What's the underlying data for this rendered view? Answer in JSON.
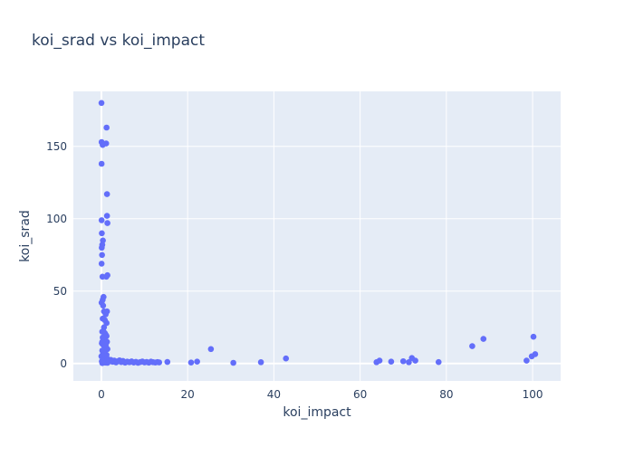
{
  "chart_data": {
    "type": "scatter",
    "title": "koi_srad vs koi_impact",
    "xlabel": "koi_impact",
    "ylabel": "koi_srad",
    "xlim": [
      -6.5,
      106.5
    ],
    "ylim": [
      -12,
      188
    ],
    "xticks": [
      0,
      20,
      40,
      60,
      80,
      100
    ],
    "yticks": [
      0,
      50,
      100,
      150
    ],
    "grid": true,
    "colors": {
      "plot_bg": "#e5ecf6",
      "marker": "#636efa",
      "grid": "#ffffff",
      "text": "#2a3f5f"
    },
    "series": [
      {
        "points": [
          [
            0.02,
            180
          ],
          [
            0.05,
            153
          ],
          [
            0.3,
            151
          ],
          [
            1.1,
            152
          ],
          [
            1.2,
            163
          ],
          [
            0.05,
            138
          ],
          [
            1.3,
            117
          ],
          [
            0.05,
            99
          ],
          [
            1.3,
            102
          ],
          [
            1.4,
            97
          ],
          [
            0.1,
            90
          ],
          [
            0.35,
            85
          ],
          [
            0.08,
            80
          ],
          [
            0.2,
            82
          ],
          [
            0.15,
            75
          ],
          [
            0.05,
            69
          ],
          [
            0.25,
            60
          ],
          [
            1.15,
            60
          ],
          [
            1.4,
            61
          ],
          [
            0.5,
            46
          ],
          [
            0.3,
            44
          ],
          [
            0.05,
            42
          ],
          [
            0.4,
            40
          ],
          [
            1.3,
            36
          ],
          [
            0.6,
            36
          ],
          [
            1.0,
            34
          ],
          [
            0.3,
            31
          ],
          [
            0.8,
            30
          ],
          [
            1.2,
            28
          ],
          [
            0.6,
            25
          ],
          [
            0.2,
            22
          ],
          [
            0.5,
            22
          ],
          [
            0.8,
            21
          ],
          [
            1.0,
            20
          ],
          [
            1.2,
            19
          ],
          [
            0.3,
            18
          ],
          [
            0.6,
            17
          ],
          [
            0.9,
            16
          ],
          [
            1.3,
            15
          ],
          [
            0.1,
            14
          ],
          [
            0.4,
            13
          ],
          [
            0.7,
            12
          ],
          [
            1.1,
            11
          ],
          [
            1.4,
            10
          ],
          [
            0.2,
            9
          ],
          [
            0.5,
            8
          ],
          [
            0.8,
            7
          ],
          [
            1.2,
            6
          ],
          [
            0.0,
            5
          ],
          [
            0.3,
            4
          ],
          [
            0.6,
            3
          ],
          [
            0.9,
            2.5
          ],
          [
            1.3,
            2
          ],
          [
            0.1,
            1.5
          ],
          [
            0.4,
            1
          ],
          [
            0.7,
            0.8
          ],
          [
            1.0,
            0.6
          ],
          [
            1.4,
            0.5
          ],
          [
            0.2,
            0.3
          ],
          [
            0.5,
            2
          ],
          [
            0.9,
            3.5
          ],
          [
            1.1,
            5
          ],
          [
            0.4,
            7
          ],
          [
            0.7,
            9
          ],
          [
            1.0,
            13
          ],
          [
            0.2,
            15
          ],
          [
            1.5,
            3
          ],
          [
            1.8,
            1.5
          ],
          [
            2.2,
            2.5
          ],
          [
            2.6,
            1.2
          ],
          [
            3.0,
            2
          ],
          [
            3.4,
            0.8
          ],
          [
            3.8,
            1.6
          ],
          [
            4.2,
            2.2
          ],
          [
            4.6,
            1
          ],
          [
            5.0,
            1.8
          ],
          [
            5.5,
            0.6
          ],
          [
            6.0,
            1.3
          ],
          [
            6.5,
            0.9
          ],
          [
            7.0,
            1.5
          ],
          [
            7.5,
            0.7
          ],
          [
            8.0,
            1.2
          ],
          [
            8.5,
            0.5
          ],
          [
            9.0,
            1.0
          ],
          [
            9.5,
            1.4
          ],
          [
            10.0,
            0.8
          ],
          [
            10.5,
            1.1
          ],
          [
            11.0,
            0.6
          ],
          [
            11.5,
            1.3
          ],
          [
            12.0,
            0.9
          ],
          [
            12.5,
            0.7
          ],
          [
            13.0,
            1.0
          ],
          [
            13.4,
            0.8
          ],
          [
            15.3,
            1.1
          ],
          [
            20.8,
            0.7
          ],
          [
            22.2,
            1.3
          ],
          [
            25.4,
            10
          ],
          [
            30.6,
            0.5
          ],
          [
            37.0,
            0.9
          ],
          [
            42.8,
            3.5
          ],
          [
            63.8,
            0.9
          ],
          [
            64.5,
            2.0
          ],
          [
            67.2,
            1.3
          ],
          [
            70.0,
            1.6
          ],
          [
            71.3,
            0.9
          ],
          [
            72.0,
            3.8
          ],
          [
            72.8,
            2.0
          ],
          [
            78.2,
            1.0
          ],
          [
            86.0,
            12
          ],
          [
            88.6,
            17
          ],
          [
            98.6,
            2.0
          ],
          [
            99.8,
            5.0
          ],
          [
            100.2,
            18.5
          ],
          [
            100.6,
            6.5
          ]
        ]
      }
    ]
  }
}
